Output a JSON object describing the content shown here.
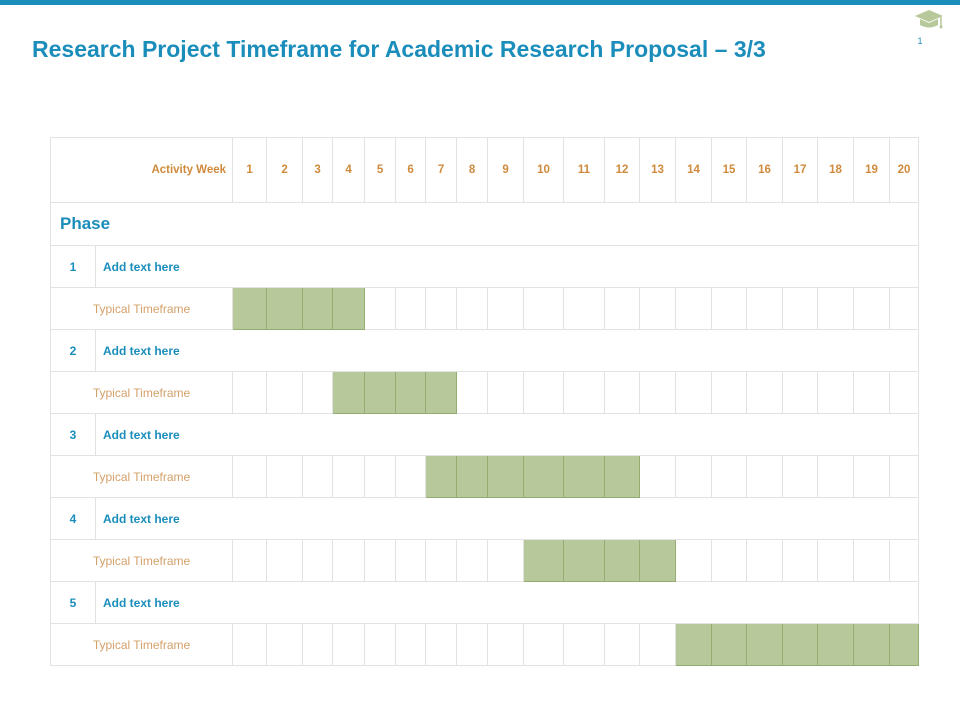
{
  "header": {
    "title": "Research Project Timeframe for Academic Research Proposal – 3/3",
    "page_number": "1"
  },
  "table": {
    "activity_week_label": "Activity Week",
    "weeks": [
      "1",
      "2",
      "3",
      "4",
      "5",
      "6",
      "7",
      "8",
      "9",
      "10",
      "11",
      "12",
      "13",
      "14",
      "15",
      "16",
      "17",
      "18",
      "19",
      "20"
    ],
    "phase_label": "Phase",
    "timeframe_label": "Typical Timeframe",
    "phases": [
      {
        "number": "1",
        "label": "Add text here",
        "active_weeks": [
          1,
          2,
          3,
          4
        ]
      },
      {
        "number": "2",
        "label": "Add text here",
        "active_weeks": [
          4,
          5,
          6,
          7
        ]
      },
      {
        "number": "3",
        "label": "Add text here",
        "active_weeks": [
          7,
          8,
          9,
          10,
          11,
          12
        ]
      },
      {
        "number": "4",
        "label": "Add text here",
        "active_weeks": [
          10,
          11,
          12,
          13
        ]
      },
      {
        "number": "5",
        "label": "Add text here",
        "active_weeks": [
          14,
          15,
          16,
          17,
          18,
          19,
          20
        ]
      }
    ]
  },
  "colors": {
    "accent": "#1b8dbb",
    "header_text": "#d08a3c",
    "timeframe_text": "#d4a06a",
    "bar_fill": "#b7c99a"
  },
  "icons": {
    "logo": "graduation-cap-icon"
  }
}
